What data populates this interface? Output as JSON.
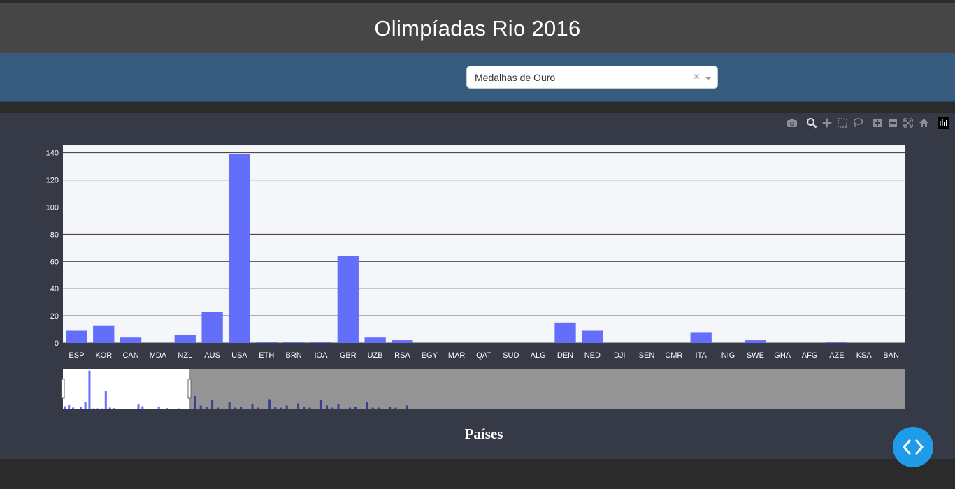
{
  "header": {
    "title": "Olimpíadas Rio 2016"
  },
  "dropdown": {
    "selected": "Medalhas de Ouro",
    "clear_symbol": "×"
  },
  "colors": {
    "bar": "#636efa",
    "plot_bg": "#f5f6fa",
    "paper_bg": "#363a46",
    "accent": "#1e9be9"
  },
  "modebar": {
    "icons": [
      "camera-icon",
      "zoom-icon",
      "pan-icon",
      "box-select-icon",
      "lasso-icon",
      "zoom-in-icon",
      "zoom-out-icon",
      "autoscale-icon",
      "reset-axes-icon",
      "plotly-logo-icon"
    ]
  },
  "chart_data": {
    "type": "bar",
    "categories": [
      "ESP",
      "KOR",
      "CAN",
      "MDA",
      "NZL",
      "AUS",
      "USA",
      "ETH",
      "BRN",
      "IOA",
      "GBR",
      "UZB",
      "RSA",
      "EGY",
      "MAR",
      "QAT",
      "SUD",
      "ALG",
      "DEN",
      "NED",
      "DJI",
      "SEN",
      "CMR",
      "ITA",
      "NIG",
      "SWE",
      "GHA",
      "AFG",
      "AZE",
      "KSA",
      "BAN"
    ],
    "values": [
      9,
      13,
      4,
      0,
      6,
      23,
      139,
      1,
      1,
      1,
      64,
      4,
      2,
      0,
      0,
      0,
      0,
      0,
      15,
      9,
      0,
      0,
      0,
      8,
      0,
      2,
      0,
      0,
      1,
      0,
      0
    ],
    "ylim": [
      0,
      146
    ],
    "yticks": [
      0,
      20,
      40,
      60,
      80,
      100,
      120,
      140
    ],
    "xlabel": "Países",
    "ylabel": "",
    "grid": true,
    "rangeslider": true
  }
}
